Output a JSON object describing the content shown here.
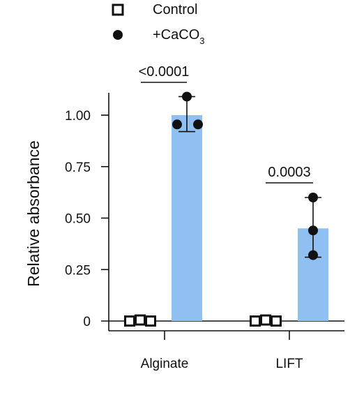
{
  "chart_data": {
    "type": "bar",
    "categories": [
      "Alginate",
      "LIFT"
    ],
    "ylabel": "Relative absorbance",
    "ylim": [
      0,
      1.12
    ],
    "yticks": [
      "0",
      "0.25",
      "0.50",
      "0.75",
      "1.00"
    ],
    "grid": false,
    "legend_position": "top-left",
    "series": [
      {
        "name": "Control",
        "marker": "open-square",
        "values": [
          0.0,
          0.0
        ],
        "points": [
          [
            0.0,
            0.005,
            0.0
          ],
          [
            0.0,
            0.005,
            0.0
          ]
        ]
      },
      {
        "name": "+CaCO",
        "name_subscript": "3",
        "marker": "filled-circle",
        "color": "#90bff2",
        "values": [
          1.0,
          0.45
        ],
        "error": [
          [
            0.92,
            1.09
          ],
          [
            0.31,
            0.6
          ]
        ],
        "points": [
          [
            1.09,
            0.955,
            0.955
          ],
          [
            0.6,
            0.44,
            0.32
          ]
        ]
      }
    ],
    "annotations": [
      {
        "category": "Alginate",
        "text": "<0.0001"
      },
      {
        "category": "LIFT",
        "text": "0.0003"
      }
    ]
  }
}
